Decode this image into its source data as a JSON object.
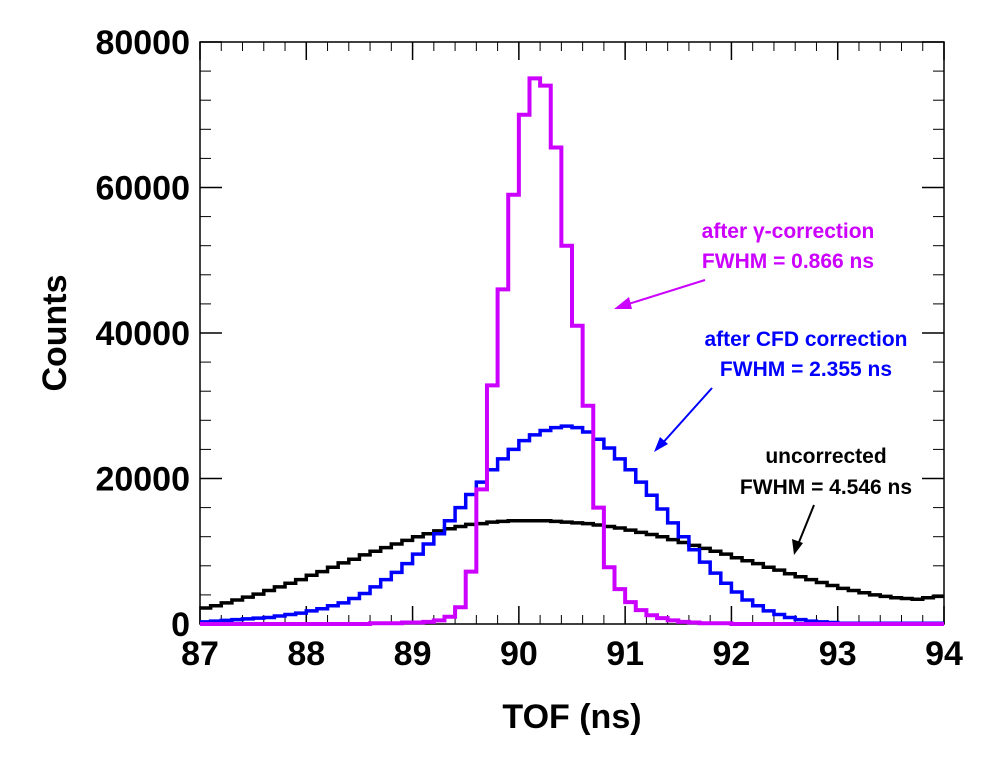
{
  "chart_data": {
    "type": "line",
    "xlabel": "TOF (ns)",
    "ylabel": "Counts",
    "xlim": [
      87,
      94
    ],
    "ylim": [
      0,
      80000
    ],
    "x_ticks": [
      "87",
      "88",
      "89",
      "90",
      "91",
      "92",
      "93",
      "94"
    ],
    "y_ticks": [
      "0",
      "20000",
      "40000",
      "60000",
      "80000"
    ],
    "grid": false,
    "bin_width": 0.1,
    "x_bin_starts": [
      87.0,
      87.1,
      87.2,
      87.3,
      87.4,
      87.5,
      87.6,
      87.7,
      87.8,
      87.9,
      88.0,
      88.1,
      88.2,
      88.3,
      88.4,
      88.5,
      88.6,
      88.7,
      88.8,
      88.9,
      89.0,
      89.1,
      89.2,
      89.3,
      89.4,
      89.5,
      89.6,
      89.7,
      89.8,
      89.9,
      90.0,
      90.1,
      90.2,
      90.3,
      90.4,
      90.5,
      90.6,
      90.7,
      90.8,
      90.9,
      91.0,
      91.1,
      91.2,
      91.3,
      91.4,
      91.5,
      91.6,
      91.7,
      91.8,
      91.9,
      92.0,
      92.1,
      92.2,
      92.3,
      92.4,
      92.5,
      92.6,
      92.7,
      92.8,
      92.9,
      93.0,
      93.1,
      93.2,
      93.3,
      93.4,
      93.5,
      93.6,
      93.7,
      93.8,
      93.9
    ],
    "series": [
      {
        "color": "#000000",
        "values": [
          2200,
          2500,
          2900,
          3300,
          3700,
          4100,
          4600,
          5100,
          5600,
          6100,
          6700,
          7200,
          7800,
          8400,
          8900,
          9500,
          10000,
          10500,
          11000,
          11500,
          12000,
          12400,
          12800,
          13100,
          13400,
          13700,
          13800,
          14000,
          14100,
          14200,
          14200,
          14200,
          14200,
          14100,
          14000,
          13900,
          13800,
          13600,
          13400,
          13200,
          12900,
          12600,
          12300,
          12000,
          11600,
          11200,
          10800,
          10400,
          10000,
          9600,
          9100,
          8700,
          8300,
          7800,
          7400,
          6900,
          6500,
          6100,
          5700,
          5300,
          4900,
          4600,
          4300,
          4000,
          3800,
          3600,
          3500,
          3400,
          3600,
          3800
        ]
      },
      {
        "color": "#0000ff",
        "values": [
          300,
          400,
          500,
          600,
          700,
          800,
          900,
          1100,
          1300,
          1500,
          1800,
          2100,
          2500,
          2900,
          3500,
          4200,
          5100,
          6100,
          7100,
          8300,
          9600,
          11000,
          12400,
          14200,
          16000,
          17800,
          19500,
          21200,
          22700,
          24000,
          25200,
          26000,
          26600,
          27000,
          27200,
          27000,
          26400,
          25400,
          24200,
          22700,
          21200,
          19500,
          17700,
          15800,
          13900,
          12000,
          10200,
          8500,
          7000,
          5600,
          4400,
          3300,
          2500,
          1800,
          1300,
          900,
          600,
          400,
          300,
          200,
          100,
          100,
          100,
          100,
          100,
          100,
          100,
          100,
          100,
          100
        ]
      },
      {
        "name": "after γ-correction",
        "color": "#cc00ff",
        "values": [
          0,
          0,
          0,
          0,
          0,
          0,
          0,
          0,
          0,
          0,
          0,
          0,
          0,
          0,
          0,
          0,
          100,
          100,
          100,
          200,
          200,
          300,
          500,
          1000,
          2300,
          7200,
          18500,
          32800,
          46000,
          59000,
          70000,
          75000,
          74000,
          65500,
          52000,
          41000,
          30000,
          16000,
          7800,
          4800,
          3000,
          1900,
          1200,
          800,
          500,
          300,
          200,
          100,
          100,
          100,
          0,
          0,
          0,
          0,
          0,
          0,
          0,
          0,
          0,
          0,
          0,
          0,
          0,
          0,
          0,
          0,
          0,
          0,
          0,
          0
        ]
      }
    ],
    "annotations": [
      {
        "lines": [
          "after γ-correction",
          "FWHM = 0.866 ns"
        ],
        "color": "#cc00ff"
      },
      {
        "lines": [
          "after CFD correction",
          "FWHM = 2.355 ns"
        ],
        "color": "#0000ff"
      },
      {
        "lines": [
          "uncorrected",
          "FWHM = 4.546 ns"
        ],
        "color": "#000000"
      }
    ]
  }
}
